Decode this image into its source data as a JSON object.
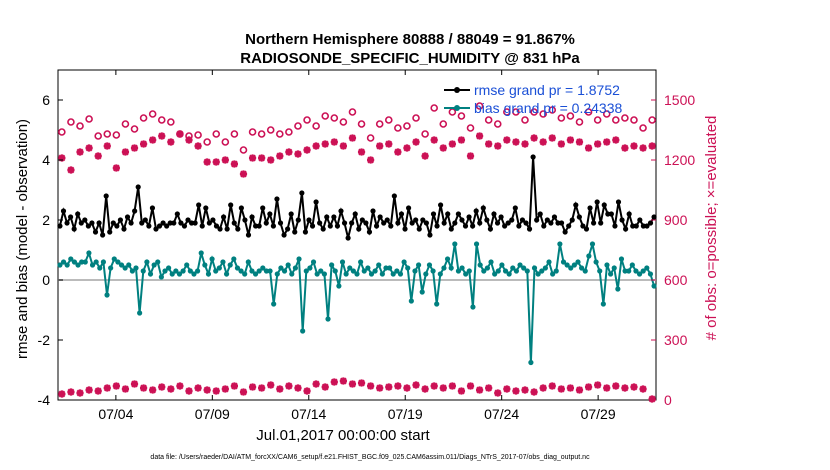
{
  "chart_data": {
    "type": "line",
    "title_line1": "Northern Hemisphere 80888 / 88049 = 91.867%",
    "title_line2": "RADIOSONDE_SPECIFIC_HUMIDITY @ 831 hPa",
    "xlabel": "Jul.01,2017 00:00:00 start",
    "ylabel_left": "rmse and bias (model - observation)",
    "ylabel_right": "# of obs: o=possible; ×=evaluated",
    "footnote": "data file: /Users/raeder/DAI/ATM_forcXX/CAM6_setup/f.e21.FHIST_BGC.f09_025.CAM6assim.011/Diags_NTrS_2017-07/obs_diag_output.nc",
    "xlim": [
      0.5,
      31.5
    ],
    "ylim_left": [
      -4,
      7
    ],
    "ylim_right": [
      0,
      1650
    ],
    "x_ticks": [
      3.5,
      8.5,
      13.5,
      18.5,
      23.5,
      28.5
    ],
    "x_tick_labels": [
      "07/04",
      "07/09",
      "07/14",
      "07/19",
      "07/24",
      "07/29"
    ],
    "y_left_ticks": [
      -4,
      -2,
      0,
      2,
      4,
      6
    ],
    "y_left_tick_labels": [
      "-4",
      "-2",
      "0",
      "2",
      "4",
      "6"
    ],
    "y_right_ticks": [
      0,
      300,
      600,
      900,
      1200,
      1500
    ],
    "y_right_tick_labels": [
      "0",
      "300",
      "600",
      "900",
      "1200",
      "1500"
    ],
    "colors": {
      "rmse": "#000000",
      "bias": "#008080",
      "obs": "#cc1155",
      "zero_line": "#bbbbbb"
    },
    "series": [
      {
        "name": "rmse grand pr = 1.8752",
        "axis": "left",
        "values": [
          1.8,
          2.3,
          1.9,
          2.1,
          1.7,
          2.2,
          1.9,
          2.0,
          1.8,
          1.9,
          1.6,
          1.9,
          1.5,
          2.8,
          1.6,
          1.9,
          1.8,
          2.0,
          1.7,
          2.1,
          1.9,
          2.3,
          3.1,
          1.9,
          2.0,
          1.8,
          2.4,
          1.7,
          1.8,
          1.9,
          1.8,
          1.9,
          1.9,
          2.2,
          1.9,
          1.8,
          2.0,
          1.9,
          1.9,
          2.5,
          1.8,
          2.4,
          1.9,
          2.0,
          1.8,
          1.7,
          2.1,
          1.7,
          2.5,
          1.9,
          1.7,
          2.4,
          2.0,
          1.5,
          2.1,
          1.8,
          1.8,
          2.4,
          1.9,
          2.2,
          1.8,
          2.7,
          1.9,
          1.5,
          1.7,
          2.2,
          1.6,
          2.0,
          2.9,
          1.6,
          2.0,
          1.8,
          2.6,
          1.9,
          1.7,
          2.1,
          1.8,
          2.1,
          1.8,
          2.3,
          1.9,
          1.4,
          1.9,
          2.2,
          1.7,
          2.0,
          1.9,
          1.6,
          2.3,
          1.8,
          2.1,
          1.9,
          2.0,
          1.8,
          2.8,
          1.9,
          2.2,
          1.7,
          2.4,
          1.9,
          2.0,
          1.7,
          2.0,
          1.9,
          1.5,
          2.2,
          1.8,
          2.5,
          1.9,
          2.2,
          1.7,
          1.9,
          2.2,
          2.0,
          1.8,
          2.1,
          1.8,
          2.3,
          1.9,
          2.4,
          2.0,
          1.7,
          2.2,
          1.9,
          2.1,
          1.8,
          1.9,
          2.0,
          2.4,
          1.8,
          2.0,
          1.9,
          1.7,
          4.1,
          2.0,
          2.2,
          1.8,
          2.0,
          1.9,
          2.1,
          1.9,
          1.9,
          1.6,
          1.8,
          2.0,
          2.5,
          2.1,
          1.8,
          1.7,
          2.4,
          1.9,
          2.6,
          1.9,
          2.5,
          2.2,
          2.2,
          1.8,
          2.6,
          2.0,
          1.7,
          2.2,
          1.8,
          1.8,
          2.0,
          1.8,
          1.8,
          1.9,
          2.1
        ]
      },
      {
        "name": "bias grand pr = 0.24338",
        "axis": "left",
        "values": [
          0.5,
          0.6,
          0.5,
          0.7,
          0.6,
          0.5,
          0.6,
          0.6,
          0.9,
          0.5,
          0.6,
          0.4,
          0.6,
          -0.5,
          0.4,
          0.7,
          0.6,
          0.5,
          0.4,
          0.5,
          0.3,
          0.4,
          -1.1,
          0.3,
          0.6,
          0.2,
          0.5,
          0.6,
          0.1,
          0.3,
          0.4,
          0.2,
          0.3,
          0.2,
          0.3,
          0.5,
          0.3,
          0.2,
          0.3,
          0.9,
          0.5,
          0.2,
          0.7,
          0.3,
          0.4,
          0.6,
          0.2,
          0.5,
          0.7,
          0.4,
          0.3,
          0.2,
          0.6,
          0.3,
          0.2,
          0.3,
          0.4,
          0.3,
          0.3,
          -0.8,
          0.2,
          0.4,
          0.3,
          0.5,
          0.2,
          0.4,
          0.7,
          -1.7,
          0.3,
          0.4,
          0.6,
          0.2,
          0.3,
          0.2,
          -1.3,
          0.5,
          0.3,
          -0.2,
          0.6,
          0.2,
          0.4,
          0.3,
          0.2,
          0.6,
          0.3,
          0.4,
          0.2,
          0.3,
          0.5,
          0.2,
          0.4,
          0.4,
          0.2,
          0.3,
          0.2,
          0.6,
          0.4,
          -0.7,
          0.3,
          0.5,
          -0.4,
          0.2,
          0.5,
          0.3,
          -0.8,
          0.2,
          0.4,
          0.7,
          0.4,
          1.2,
          0.3,
          0.4,
          0.2,
          0.3,
          -0.9,
          1.2,
          0.5,
          0.3,
          0.4,
          0.6,
          0.2,
          0.3,
          0.5,
          0.3,
          0.2,
          0.4,
          0.3,
          0.5,
          0.4,
          0.3,
          -2.75,
          0.4,
          0.2,
          0.3,
          0.4,
          0.6,
          0.2,
          0.3,
          1.2,
          0.6,
          0.5,
          0.4,
          0.5,
          0.6,
          0.4,
          0.3,
          0.8,
          1.2,
          0.6,
          0.3,
          -0.8,
          0.5,
          0.2,
          0.4,
          -0.3,
          0.7,
          0.3,
          0.3,
          0.5,
          0.3,
          0.2,
          0.3,
          0.4,
          0.2,
          -0.2
        ]
      },
      {
        "name": "possible",
        "axis": "right",
        "values": [
          1340,
          1390,
          1370,
          1405,
          1320,
          1330,
          1325,
          1380,
          1355,
          1410,
          1430,
          1400,
          1390,
          1330,
          1320,
          1325,
          1290,
          1330,
          1290,
          1330,
          1250,
          1340,
          1330,
          1350,
          1330,
          1340,
          1370,
          1400,
          1370,
          1420,
          1410,
          1390,
          1440,
          1380,
          1310,
          1380,
          1400,
          1360,
          1370,
          1410,
          1330,
          1460,
          1380,
          1440,
          1420,
          1360,
          1470,
          1400,
          1380,
          1440,
          1440,
          1400,
          1440,
          1430,
          1450,
          1410,
          1420,
          1390,
          1440,
          1400,
          1430,
          1400,
          1410,
          1400,
          1360,
          1400
        ]
      },
      {
        "name": "evaluated",
        "axis": "right",
        "values": [
          1210,
          1150,
          1240,
          1260,
          1220,
          1270,
          1160,
          1240,
          1260,
          1280,
          1300,
          1320,
          1290,
          1330,
          1300,
          1270,
          1190,
          1190,
          1200,
          1180,
          1130,
          1210,
          1210,
          1200,
          1220,
          1240,
          1230,
          1250,
          1270,
          1280,
          1290,
          1270,
          1310,
          1240,
          1200,
          1270,
          1280,
          1240,
          1260,
          1290,
          1220,
          1300,
          1260,
          1280,
          1300,
          1220,
          1320,
          1280,
          1270,
          1300,
          1290,
          1280,
          1310,
          1290,
          1310,
          1280,
          1300,
          1290,
          1260,
          1280,
          1290,
          1300,
          1260,
          1270,
          1260,
          1270
        ]
      },
      {
        "name": "evaluated-bottom",
        "axis": "right",
        "values": [
          30,
          40,
          35,
          50,
          45,
          60,
          70,
          55,
          80,
          60,
          50,
          65,
          55,
          70,
          45,
          60,
          50,
          45,
          55,
          70,
          40,
          65,
          60,
          75,
          55,
          70,
          60,
          45,
          80,
          65,
          90,
          95,
          80,
          85,
          70,
          60,
          65,
          70,
          60,
          75,
          55,
          70,
          60,
          70,
          45,
          70,
          50,
          60,
          35,
          55,
          45,
          50,
          40,
          60,
          70,
          55,
          60,
          50,
          65,
          75,
          60,
          70,
          60,
          65,
          55,
          5
        ]
      }
    ]
  }
}
